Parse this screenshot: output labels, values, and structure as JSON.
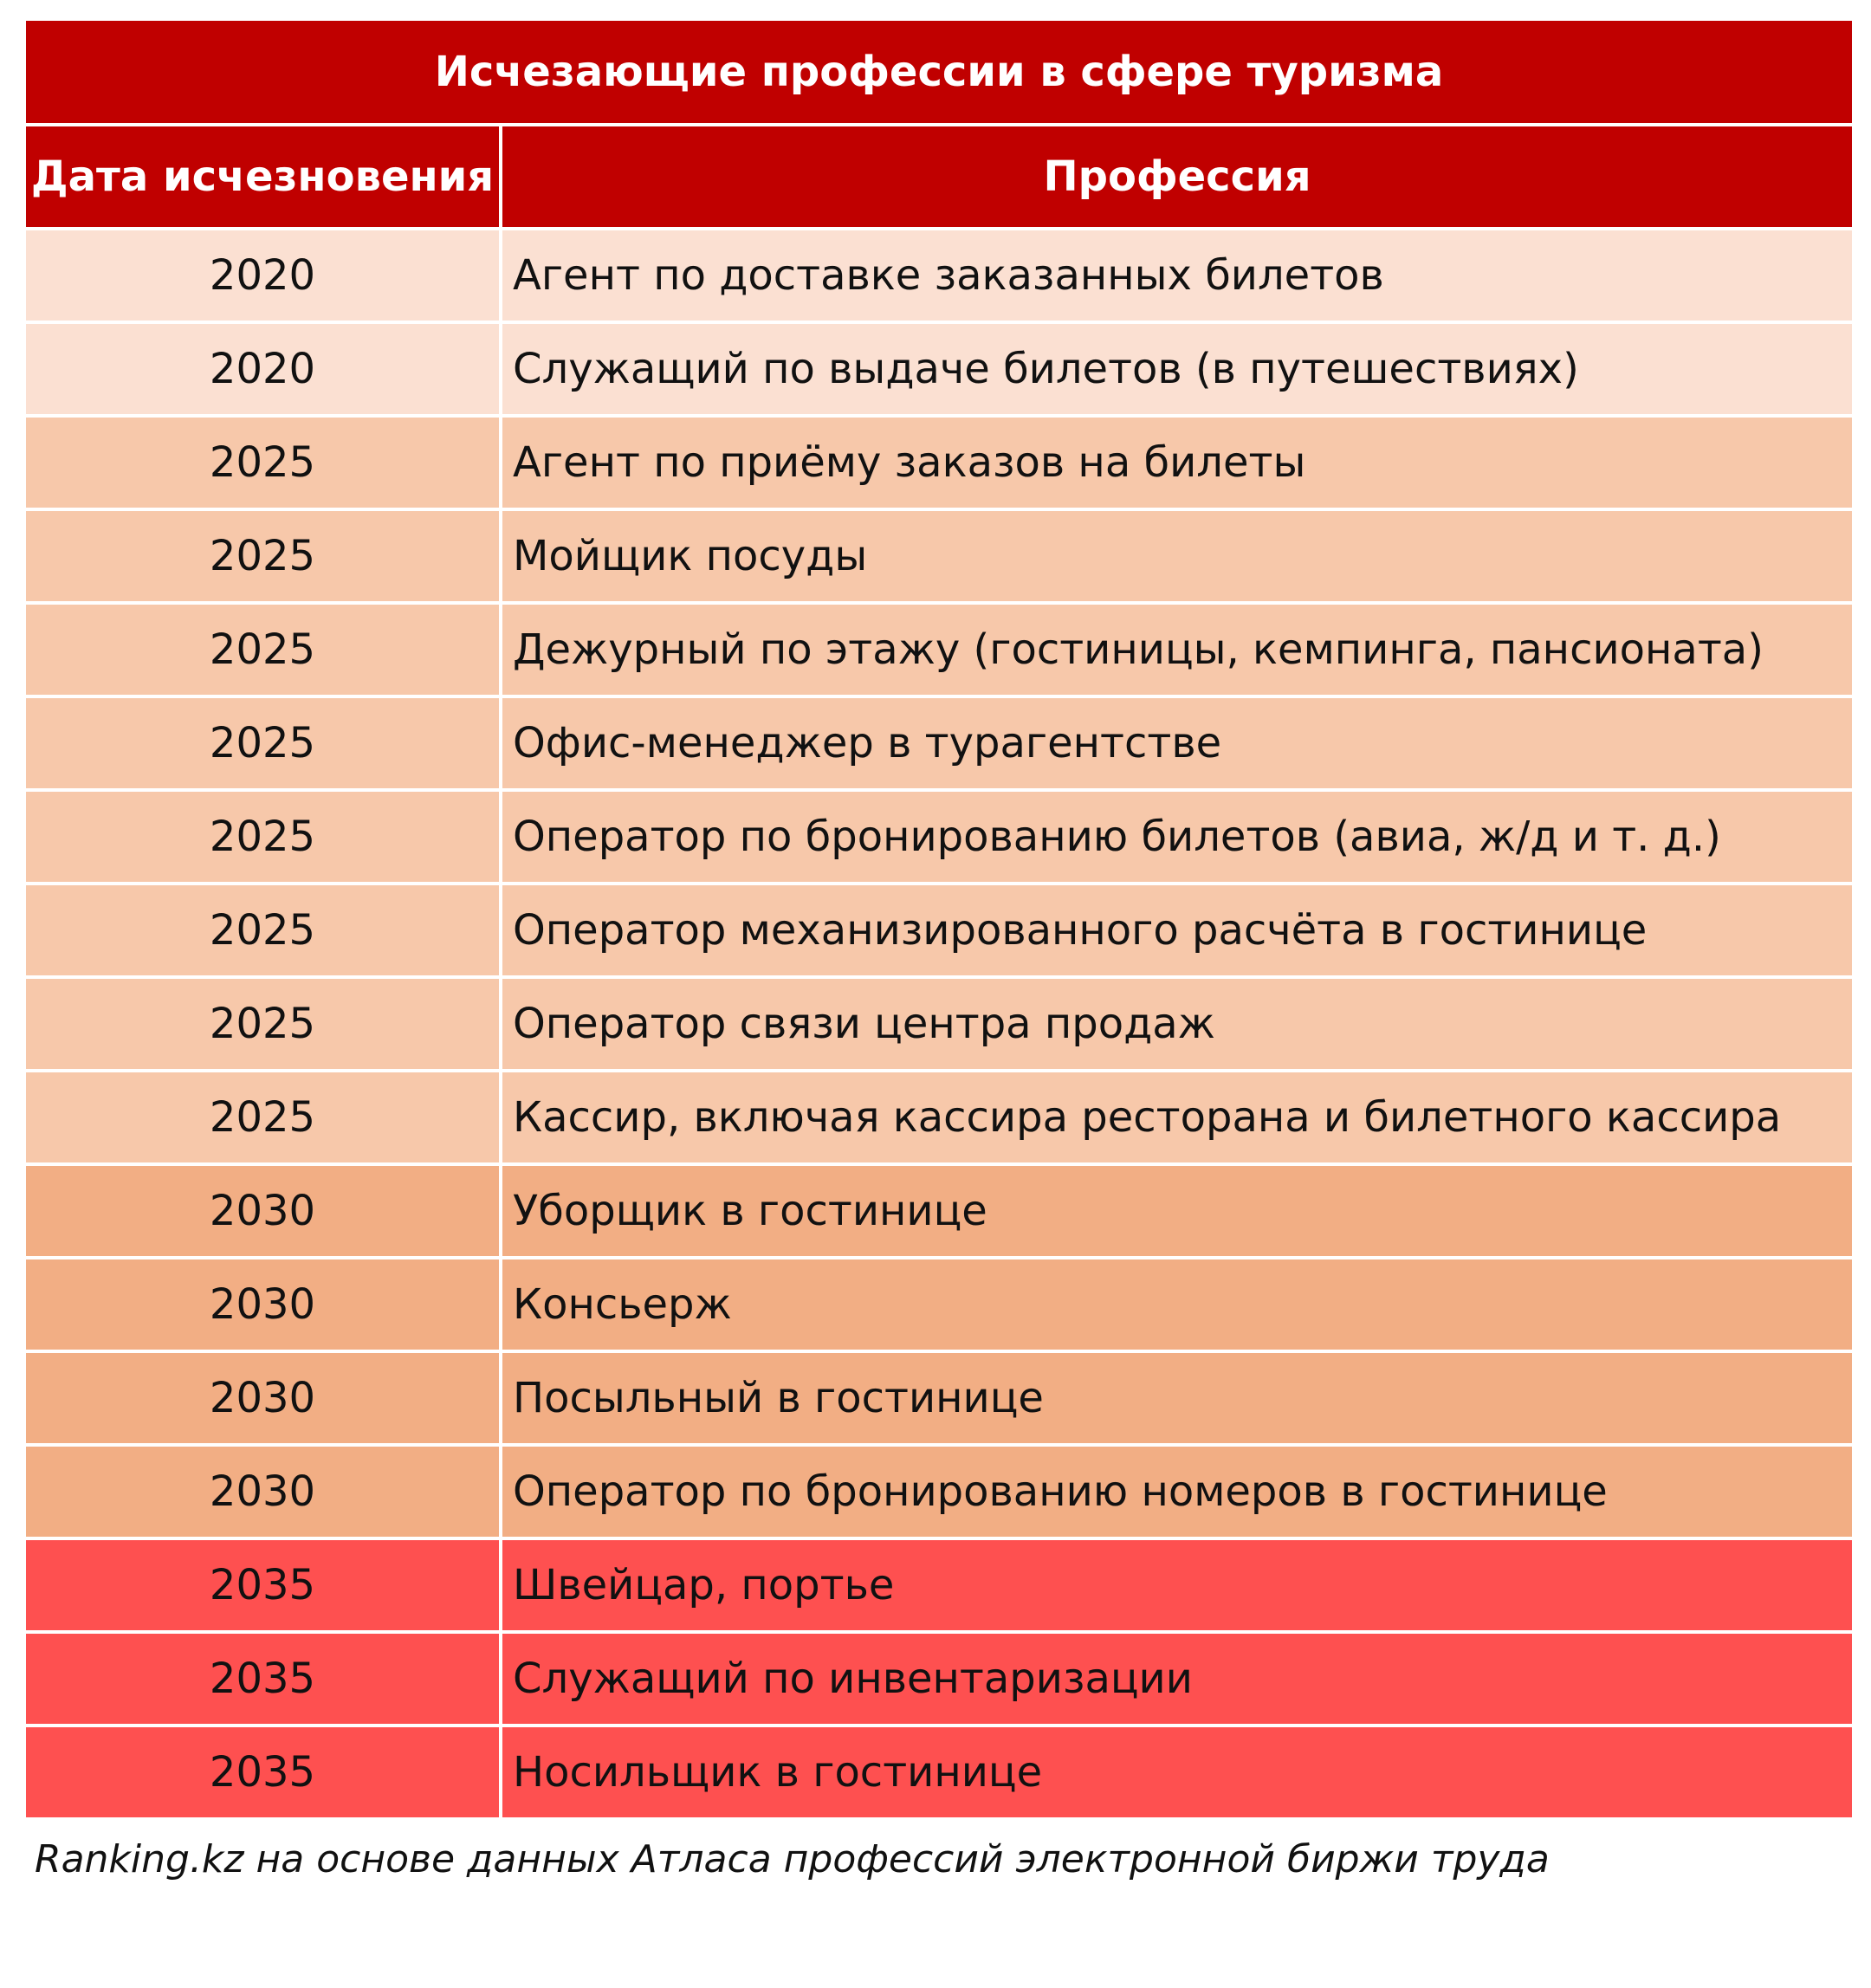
{
  "table": {
    "title": "Исчезающие профессии в сфере туризма",
    "columns": [
      "Дата исчезновения",
      "Профессия"
    ],
    "rows": [
      {
        "year": "2020",
        "profession": "Агент по доставке заказанных билетов",
        "color": "#fbe0d2"
      },
      {
        "year": "2020",
        "profession": "Служащий по выдаче билетов (в путешествиях)",
        "color": "#fbe0d2"
      },
      {
        "year": "2025",
        "profession": "Агент по приёму заказов на билеты",
        "color": "#f7c8aa"
      },
      {
        "year": "2025",
        "profession": "Мойщик посуды",
        "color": "#f7c8aa"
      },
      {
        "year": "2025",
        "profession": "Дежурный по этажу (гостиницы, кемпинга, пансионата)",
        "color": "#f7c8aa"
      },
      {
        "year": "2025",
        "profession": "Офис-менеджер в турагентстве",
        "color": "#f7c8aa"
      },
      {
        "year": "2025",
        "profession": "Оператор по бронированию билетов (авиа, ж/д и т. д.)",
        "color": "#f7c8aa"
      },
      {
        "year": "2025",
        "profession": "Оператор механизированного расчёта в гостинице",
        "color": "#f7c8aa"
      },
      {
        "year": "2025",
        "profession": "Оператор связи центра продаж",
        "color": "#f7c8aa"
      },
      {
        "year": "2025",
        "profession": "Кассир, включая кассира ресторана и билетного кассира",
        "color": "#f7c8aa"
      },
      {
        "year": "2030",
        "profession": "Уборщик в гостинице",
        "color": "#f2ae84"
      },
      {
        "year": "2030",
        "profession": "Консьерж",
        "color": "#f2ae84"
      },
      {
        "year": "2030",
        "profession": "Посыльный в гостинице",
        "color": "#f2ae84"
      },
      {
        "year": "2030",
        "profession": "Оператор по бронированию номеров в гостинице",
        "color": "#f2ae84"
      },
      {
        "year": "2035",
        "profession": "Швейцар, портье",
        "color": "#fe5050"
      },
      {
        "year": "2035",
        "profession": "Служащий по инвентаризации",
        "color": "#fe5050"
      },
      {
        "year": "2035",
        "profession": "Носильщик в гостинице",
        "color": "#fe5050"
      }
    ],
    "source": "Ranking.kz на основе данных Атласа профессий электронной биржи труда",
    "colors": {
      "header_bg": "#c00000",
      "header_text": "#ffffff"
    }
  }
}
